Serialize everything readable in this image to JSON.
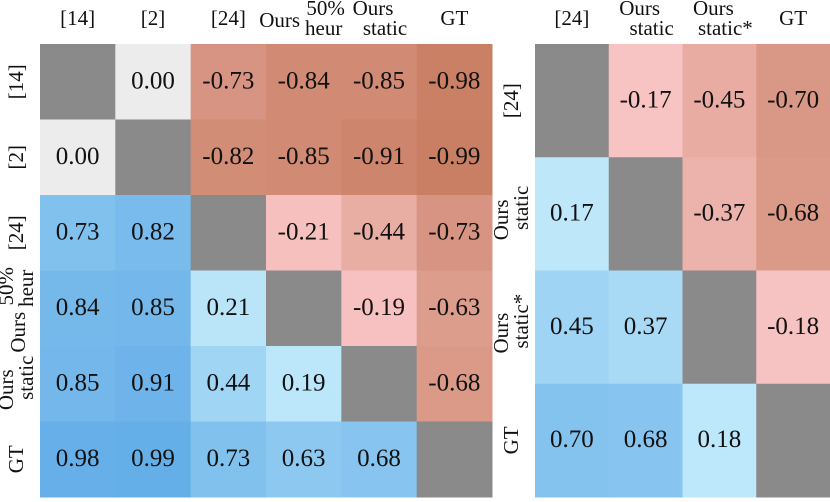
{
  "chart_data": [
    {
      "type": "heatmap",
      "categories": [
        [
          "[14]"
        ],
        [
          "[2]"
        ],
        [
          "[24]"
        ],
        [
          "Ours",
          "50%",
          "heur"
        ],
        [
          "Ours",
          "static"
        ],
        [
          "GT"
        ]
      ],
      "values": [
        [
          null,
          0.0,
          -0.73,
          -0.84,
          -0.85,
          -0.98
        ],
        [
          0.0,
          null,
          -0.82,
          -0.85,
          -0.91,
          -0.99
        ],
        [
          0.73,
          0.82,
          null,
          -0.21,
          -0.44,
          -0.73
        ],
        [
          0.84,
          0.85,
          0.21,
          null,
          -0.19,
          -0.63
        ],
        [
          0.85,
          0.91,
          0.44,
          0.19,
          null,
          -0.68
        ],
        [
          0.98,
          0.99,
          0.73,
          0.63,
          0.68,
          null
        ]
      ],
      "value_labels": [
        [
          null,
          "0.00",
          "-0.73",
          "-0.84",
          "-0.85",
          "-0.98"
        ],
        [
          "0.00",
          null,
          "-0.82",
          "-0.85",
          "-0.91",
          "-0.99"
        ],
        [
          "0.73",
          "0.82",
          null,
          "-0.21",
          "-0.44",
          "-0.73"
        ],
        [
          "0.84",
          "0.85",
          "0.21",
          null,
          "-0.19",
          "-0.63"
        ],
        [
          "0.85",
          "0.91",
          "0.44",
          "0.19",
          null,
          "-0.68"
        ],
        [
          "0.98",
          "0.99",
          "0.73",
          "0.63",
          "0.68",
          null
        ]
      ],
      "colorscale": [
        [
          -1,
          "#c87e62"
        ],
        [
          -0.17,
          "#f8c3c3"
        ],
        [
          0,
          "#ececec"
        ],
        [
          0.17,
          "#bee8fa"
        ],
        [
          1,
          "#64aee8"
        ]
      ],
      "null_color": "#8a8a8a"
    },
    {
      "type": "heatmap",
      "categories": [
        [
          "[24]"
        ],
        [
          "Ours",
          "static"
        ],
        [
          "Ours",
          "static*"
        ],
        [
          "GT"
        ]
      ],
      "values": [
        [
          null,
          -0.17,
          -0.45,
          -0.7
        ],
        [
          0.17,
          null,
          -0.37,
          -0.68
        ],
        [
          0.45,
          0.37,
          null,
          -0.18
        ],
        [
          0.7,
          0.68,
          0.18,
          null
        ]
      ],
      "value_labels": [
        [
          null,
          "-0.17",
          "-0.45",
          "-0.70"
        ],
        [
          "0.17",
          null,
          "-0.37",
          "-0.68"
        ],
        [
          "0.45",
          "0.37",
          null,
          "-0.18"
        ],
        [
          "0.70",
          "0.68",
          "0.18",
          null
        ]
      ],
      "colorscale": [
        [
          -1,
          "#c87e62"
        ],
        [
          -0.17,
          "#f8c3c3"
        ],
        [
          0,
          "#ececec"
        ],
        [
          0.17,
          "#bee8fa"
        ],
        [
          1,
          "#64aee8"
        ]
      ],
      "null_color": "#8a8a8a"
    }
  ]
}
